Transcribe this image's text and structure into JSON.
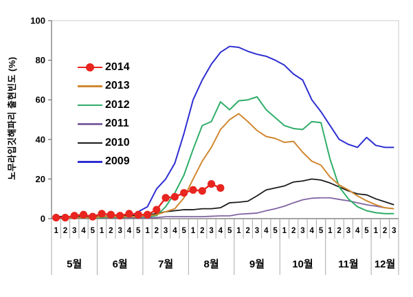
{
  "chart_data": {
    "type": "line",
    "title": "",
    "ylabel": "노무라입깃해파리 출현빈도 (%)",
    "xlabel": "",
    "ylim": [
      0,
      100
    ],
    "yticks": [
      "0",
      "20",
      "40",
      "60",
      "80",
      "100"
    ],
    "grid": false,
    "legend_position": "upper-left-inside",
    "x_axis": {
      "months": [
        {
          "label": "5월",
          "weeks": [
            "1",
            "2",
            "3",
            "4",
            "5"
          ]
        },
        {
          "label": "6월",
          "weeks": [
            "1",
            "2",
            "3",
            "4",
            "5"
          ]
        },
        {
          "label": "7월",
          "weeks": [
            "1",
            "2",
            "3",
            "4",
            "5"
          ]
        },
        {
          "label": "8월",
          "weeks": [
            "1",
            "2",
            "3",
            "4",
            "5"
          ]
        },
        {
          "label": "9월",
          "weeks": [
            "1",
            "2",
            "3",
            "4",
            "5"
          ]
        },
        {
          "label": "10월",
          "weeks": [
            "1",
            "2",
            "3",
            "4",
            "5"
          ]
        },
        {
          "label": "11월",
          "weeks": [
            "1",
            "2",
            "3",
            "4",
            "5"
          ]
        },
        {
          "label": "12월",
          "weeks": [
            "1",
            "2",
            "3"
          ]
        }
      ]
    },
    "series": [
      {
        "name": "2014",
        "color": "#e8251f",
        "marker": "filled-circle",
        "line_width": 2.5,
        "values": [
          0.5,
          0.5,
          1.5,
          2,
          1,
          2.5,
          2,
          1.5,
          2.5,
          2,
          2,
          4.5,
          10.5,
          11,
          13,
          14.5,
          14,
          17.5,
          15.5
        ]
      },
      {
        "name": "2013",
        "color": "#d0872f",
        "marker": null,
        "line_width": 2,
        "values": [
          0.5,
          0.5,
          0.5,
          0.5,
          0.5,
          1,
          1,
          1,
          1,
          1,
          1.5,
          2,
          3.5,
          5,
          10.5,
          20,
          29,
          36,
          45,
          50,
          53,
          49,
          44.5,
          41.5,
          40.5,
          38.5,
          39,
          33.5,
          29,
          27,
          21,
          17,
          14.5,
          11.5,
          9,
          7,
          5.5,
          5
        ]
      },
      {
        "name": "2012",
        "color": "#2ead68",
        "marker": null,
        "line_width": 2,
        "values": [
          0.5,
          0.5,
          0.5,
          0.5,
          0.5,
          0.5,
          1,
          0.5,
          1,
          1,
          1,
          1.5,
          6,
          13,
          22,
          35,
          47,
          49,
          59,
          55,
          59.5,
          60,
          61.5,
          55,
          51,
          47,
          45.5,
          45,
          49,
          48.5,
          30,
          16,
          10,
          6,
          4,
          3,
          2.5,
          2.5
        ]
      },
      {
        "name": "2011",
        "color": "#8064a2",
        "marker": null,
        "line_width": 1.8,
        "values": [
          0.5,
          0.5,
          0.5,
          0.5,
          0.5,
          0.5,
          0.5,
          0.5,
          0.5,
          0.5,
          0.5,
          0.5,
          1,
          1,
          1,
          1,
          1,
          1.2,
          1.4,
          1.4,
          2.2,
          2.5,
          2.8,
          4,
          5,
          6.3,
          8,
          9.5,
          10.3,
          10.5,
          10.5,
          9.7,
          9,
          8,
          7,
          6.3,
          5.5,
          5
        ]
      },
      {
        "name": "2010",
        "color": "#1a1a1a",
        "marker": null,
        "line_width": 1.8,
        "values": [
          1,
          1,
          1,
          1,
          1,
          1,
          1.5,
          1.5,
          1.5,
          1.5,
          2,
          2.5,
          3.5,
          4,
          4.5,
          4.5,
          5,
          5,
          5.5,
          8,
          8.3,
          8.8,
          11.5,
          14.5,
          15.5,
          16.5,
          18.5,
          19,
          20,
          19.5,
          18,
          16,
          14,
          12.5,
          12,
          10,
          8.5,
          7
        ]
      },
      {
        "name": "2009",
        "color": "#2d2dd1",
        "marker": null,
        "line_width": 2,
        "values": [
          1,
          1,
          1,
          0.5,
          0.5,
          0.5,
          0.5,
          0.5,
          1,
          3.5,
          6,
          15,
          20,
          28,
          43,
          60,
          70,
          78,
          84,
          87,
          86.5,
          84.5,
          83,
          82,
          80,
          77.5,
          73,
          70,
          60,
          54,
          47,
          40,
          37.5,
          36,
          41,
          37,
          36,
          36
        ]
      }
    ]
  },
  "style_colors": {
    "axis": "#6e6e6e",
    "separator": "#a8a8a8",
    "plot_border": "#c9c9c9",
    "text": "#000000",
    "background": "#ffffff"
  }
}
